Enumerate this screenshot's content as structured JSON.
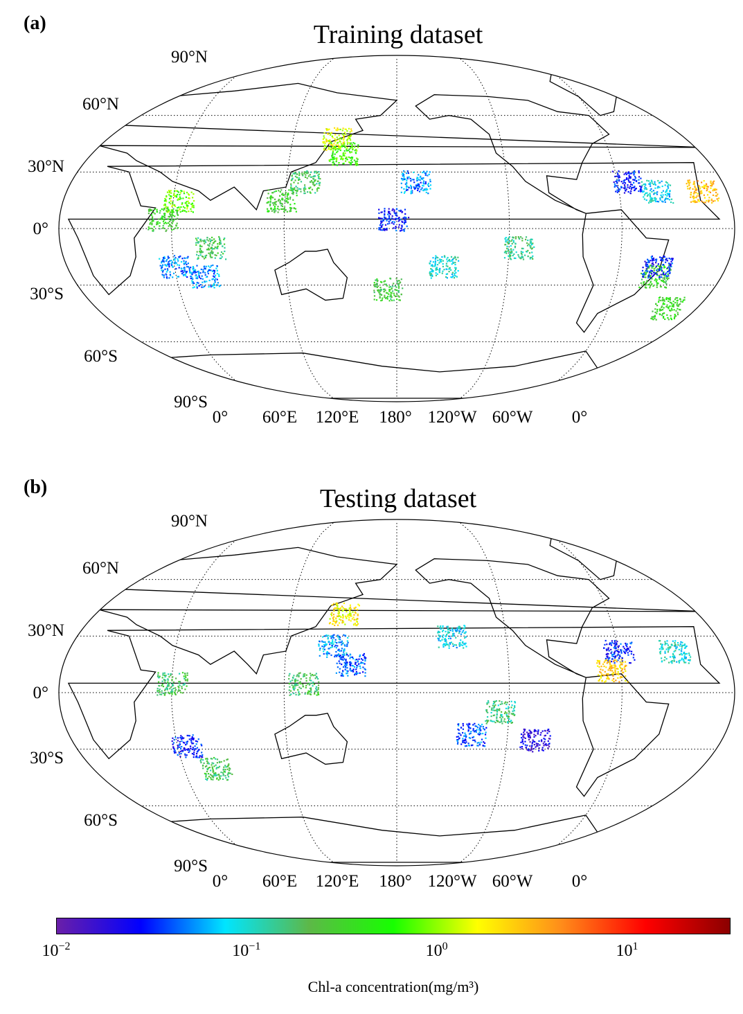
{
  "panels": [
    {
      "letter": "(a)",
      "title": "Training dataset",
      "lat_labels": [
        "90°N",
        "60°N",
        "30°N",
        "0°",
        "30°S",
        "60°S",
        "90°S"
      ],
      "lon_labels": [
        "0°",
        "60°E",
        "120°E",
        "180°",
        "120°W",
        "60°W",
        "0°"
      ],
      "sample_regions": [
        {
          "lon": 145,
          "lat": 48,
          "chl": 1.5
        },
        {
          "lon": 150,
          "lat": 40,
          "chl": 0.6
        },
        {
          "lon": 130,
          "lat": 25,
          "chl": 0.2
        },
        {
          "lon": 118,
          "lat": 15,
          "chl": 0.3
        },
        {
          "lon": 63,
          "lat": 15,
          "chl": 0.8
        },
        {
          "lon": 55,
          "lat": 5,
          "chl": 0.3
        },
        {
          "lon": 60,
          "lat": -20,
          "chl": 0.05
        },
        {
          "lon": 80,
          "lat": -10,
          "chl": 0.2
        },
        {
          "lon": 75,
          "lat": -25,
          "chl": 0.05
        },
        {
          "lon": 190,
          "lat": 25,
          "chl": 0.05
        },
        {
          "lon": 178,
          "lat": 5,
          "chl": 0.03
        },
        {
          "lon": 175,
          "lat": -32,
          "chl": 0.25
        },
        {
          "lon": 205,
          "lat": -20,
          "chl": 0.1
        },
        {
          "lon": 245,
          "lat": -10,
          "chl": 0.15
        },
        {
          "lon": 305,
          "lat": 25,
          "chl": 0.03
        },
        {
          "lon": 320,
          "lat": 20,
          "chl": 0.08
        },
        {
          "lon": 345,
          "lat": 20,
          "chl": 3.0
        },
        {
          "lon": 320,
          "lat": -25,
          "chl": 0.3
        },
        {
          "lon": 333,
          "lat": -42,
          "chl": 0.35
        },
        {
          "lon": 320,
          "lat": -20,
          "chl": 0.03
        }
      ]
    },
    {
      "letter": "(b)",
      "title": "Testing dataset",
      "lat_labels": [
        "90°N",
        "60°N",
        "30°N",
        "0°",
        "30°S",
        "60°S",
        "90°S"
      ],
      "lon_labels": [
        "0°",
        "60°E",
        "120°E",
        "180°",
        "120°W",
        "60°W",
        "0°"
      ],
      "sample_regions": [
        {
          "lon": 150,
          "lat": 42,
          "chl": 1.8
        },
        {
          "lon": 145,
          "lat": 25,
          "chl": 0.06
        },
        {
          "lon": 155,
          "lat": 15,
          "chl": 0.04
        },
        {
          "lon": 130,
          "lat": 5,
          "chl": 0.2
        },
        {
          "lon": 60,
          "lat": 5,
          "chl": 0.2
        },
        {
          "lon": 65,
          "lat": -28,
          "chl": 0.03
        },
        {
          "lon": 78,
          "lat": -40,
          "chl": 0.2
        },
        {
          "lon": 210,
          "lat": 30,
          "chl": 0.08
        },
        {
          "lon": 235,
          "lat": -10,
          "chl": 0.15
        },
        {
          "lon": 220,
          "lat": -22,
          "chl": 0.04
        },
        {
          "lon": 255,
          "lat": -25,
          "chl": 0.02
        },
        {
          "lon": 300,
          "lat": 22,
          "chl": 0.03
        },
        {
          "lon": 330,
          "lat": 22,
          "chl": 0.1
        },
        {
          "lon": 295,
          "lat": 12,
          "chl": 2.5
        }
      ]
    }
  ],
  "colorbar": {
    "label": "Chl-a concentration(mg/m³)",
    "ticks": [
      {
        "base": "10",
        "exp": "−2",
        "value": 0.01
      },
      {
        "base": "10",
        "exp": "−1",
        "value": 0.1
      },
      {
        "base": "10",
        "exp": "0",
        "value": 1
      },
      {
        "base": "10",
        "exp": "1",
        "value": 10
      }
    ],
    "range": [
      0.01,
      35
    ],
    "colors": [
      "#6a1fa8",
      "#0000ff",
      "#00e5ff",
      "#5db848",
      "#17ff00",
      "#ffff00",
      "#ff8c1a",
      "#ff0000",
      "#8b0000"
    ]
  }
}
